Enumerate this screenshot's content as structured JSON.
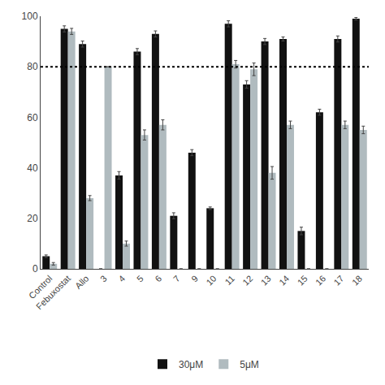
{
  "chart_data": {
    "type": "bar",
    "categories": [
      "Control",
      "Febuxostat",
      "Allo",
      "3",
      "4",
      "5",
      "6",
      "7",
      "9",
      "10",
      "11",
      "12",
      "13",
      "14",
      "15",
      "16",
      "17",
      "18"
    ],
    "series": [
      {
        "name": "30μM",
        "color": "#111111",
        "values": [
          5,
          95,
          89,
          0,
          37,
          86,
          93,
          21,
          46,
          24,
          97,
          73,
          90,
          91,
          15,
          62,
          91,
          99
        ],
        "errors": [
          0.5,
          1.2,
          1.2,
          0,
          1.5,
          1.2,
          1.2,
          1.2,
          1.2,
          0.5,
          1.2,
          1.5,
          1.2,
          0.8,
          1.5,
          1.2,
          1.2,
          0.5
        ]
      },
      {
        "name": "5μM",
        "color": "#b0bbbf",
        "values": [
          2,
          94,
          28,
          80,
          10,
          53,
          57,
          0,
          0,
          0,
          81,
          79,
          38,
          57,
          0,
          0,
          57,
          55
        ],
        "errors": [
          0.5,
          1.2,
          1.0,
          0,
          1.0,
          2.0,
          2.0,
          0,
          0,
          0,
          1.5,
          2.5,
          2.5,
          1.5,
          0,
          0,
          1.5,
          1.5
        ]
      }
    ],
    "hline": 80,
    "ylim": [
      0,
      100
    ],
    "yticks": [
      0,
      20,
      40,
      60,
      80,
      100
    ],
    "grid": false,
    "legend": "bottom"
  }
}
